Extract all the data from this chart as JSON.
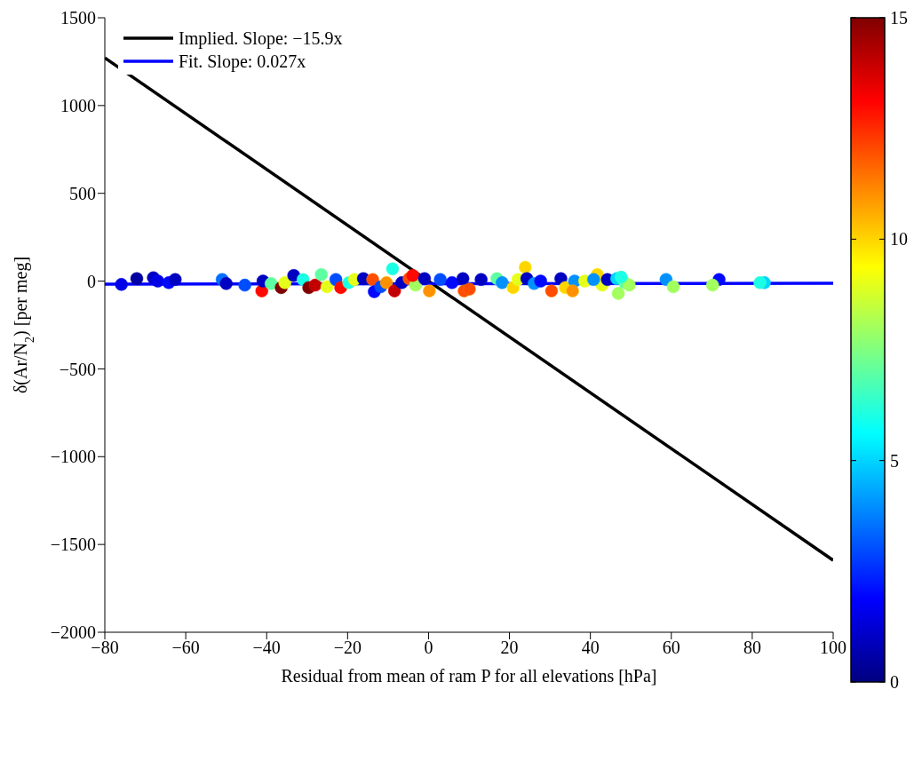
{
  "chart_data": {
    "type": "scatter",
    "xlabel": "Residual from mean of ram P for all elevations [hPa]",
    "ylabel": "δ(Ar/N$_{2}$) [per meg]",
    "xlim": [
      -80,
      100
    ],
    "xticks": [
      -80,
      -60,
      -40,
      -20,
      0,
      20,
      40,
      60,
      80,
      100
    ],
    "ylim": [
      -2000,
      1500
    ],
    "yticks": [
      -2000,
      -1500,
      -1000,
      -500,
      0,
      500,
      1000,
      1500
    ],
    "clim": [
      0,
      15
    ],
    "cticks": [
      0,
      5,
      10,
      15
    ],
    "legend": "top left",
    "grid": false,
    "series": [
      {
        "marker": "circle",
        "colors": [
          "#0000e6",
          "#00008f",
          "#0000bf",
          "#0000e6",
          "#0010ff",
          "#0000bf",
          "#0070ff",
          "#0000bf",
          "#0050ff",
          "#ff2000",
          "#0000bf",
          "#70ff8f",
          "#800000",
          "#efff10",
          "#0000bf",
          "#40ffbf",
          "#800000",
          "#df0000",
          "#70ff8f",
          "#efff10",
          "#0050ff",
          "#ff2000",
          "#40ffbf",
          "#efff10",
          "#0000bf",
          "#ff8000",
          "#0010ff",
          "#0050ff",
          "#ffbf00",
          "#40ffbf",
          "#df0000",
          "#0000bf",
          "#ff8000",
          "#9fff60",
          "#ff2000",
          "#0000bf",
          "#ffbf00",
          "#0050ff",
          "#0010ff",
          "#0000bf",
          "#ff8000",
          "#ff8000",
          "#0000bf",
          "#70ff8f",
          "#0090ff",
          "#ffef00",
          "#efff10",
          "#ffef00",
          "#0000bf",
          "#0090ff",
          "#0010ff",
          "#ff8000",
          "#0000bf",
          "#ffef00",
          "#0090ff",
          "#ffbf00",
          "#efff10",
          "#ffef00",
          "#efff10",
          "#0090ff",
          "#0000bf",
          "#00cfff",
          "#9fff60",
          "#70ff8f",
          "#9fff60",
          "#40ffbf",
          "#0090ff",
          "#9fff60",
          "#0010ff",
          "#9fff60",
          "#00cfff",
          "#40ffbf"
        ],
        "x": [
          -75.9,
          -72.1,
          -68,
          -66.9,
          -64.2,
          -62.6,
          -51,
          -50,
          -45.4,
          -41.2,
          -40.9,
          -38.9,
          -36.4,
          -35.5,
          -33.3,
          -31,
          -29.6,
          -28,
          -26.5,
          -25.1,
          -22.9,
          -21.7,
          -19.7,
          -18.3,
          -16.1,
          -13.8,
          -13.4,
          -11.8,
          -10.4,
          -8.9,
          -8.4,
          -6.6,
          -4.8,
          -3.2,
          -3.9,
          -1,
          0.2,
          2.9,
          5.8,
          8.5,
          8.8,
          10.1,
          13,
          16.9,
          18.2,
          20.9,
          22.1,
          23.9,
          24.3,
          26.1,
          27.7,
          30.4,
          32.7,
          33.8,
          36.1,
          35.6,
          38.6,
          41.7,
          42.9,
          40.8,
          44.2,
          46.5,
          46.9,
          48.5,
          49.6,
          47.6,
          58.7,
          60.5,
          71.8,
          70.2,
          83,
          81.9
        ],
        "values": [
          -19,
          14,
          19,
          0,
          -9,
          9,
          9,
          -14,
          -23,
          -56,
          0,
          -14,
          -37,
          -9,
          32,
          9,
          -37,
          -23,
          37,
          -32,
          9,
          -37,
          -9,
          9,
          14,
          9,
          -60,
          -32,
          -9,
          70,
          -56,
          -9,
          14,
          -23,
          32,
          14,
          -56,
          9,
          -9,
          14,
          -56,
          -46,
          9,
          14,
          -9,
          -37,
          9,
          79,
          14,
          -14,
          0,
          -56,
          14,
          -37,
          0,
          -56,
          0,
          37,
          -23,
          9,
          9,
          14,
          -70,
          -9,
          -23,
          23,
          9,
          -32,
          9,
          -23,
          -9,
          -9
        ],
        "cvalues": [
          1.5,
          0.5,
          1,
          1.5,
          2,
          1,
          3.5,
          1,
          3,
          13,
          1,
          7,
          15,
          9,
          1,
          6,
          15,
          14,
          7,
          9,
          3,
          13,
          6,
          9,
          1,
          12,
          2,
          3,
          11,
          6,
          14,
          1,
          12,
          8,
          13,
          1,
          11,
          3,
          2,
          1,
          12,
          12,
          1,
          7,
          4,
          10,
          9,
          10,
          1,
          4,
          2,
          12,
          1,
          10,
          4,
          11,
          9,
          10,
          9,
          4,
          1,
          5,
          8,
          7,
          8,
          6,
          4,
          8,
          2,
          8,
          5,
          6
        ]
      },
      {
        "type": "line",
        "marker": "none",
        "name": "Implied. Slope: −15.9x",
        "color": "#000000",
        "x": [
          -80,
          100
        ],
        "values": [
          1272,
          -1590
        ]
      },
      {
        "type": "line",
        "marker": "none",
        "name": "Fit. Slope: 0.027x",
        "color": "#0000ff",
        "x": [
          -80,
          100
        ],
        "values": [
          -17,
          -12
        ]
      }
    ]
  }
}
